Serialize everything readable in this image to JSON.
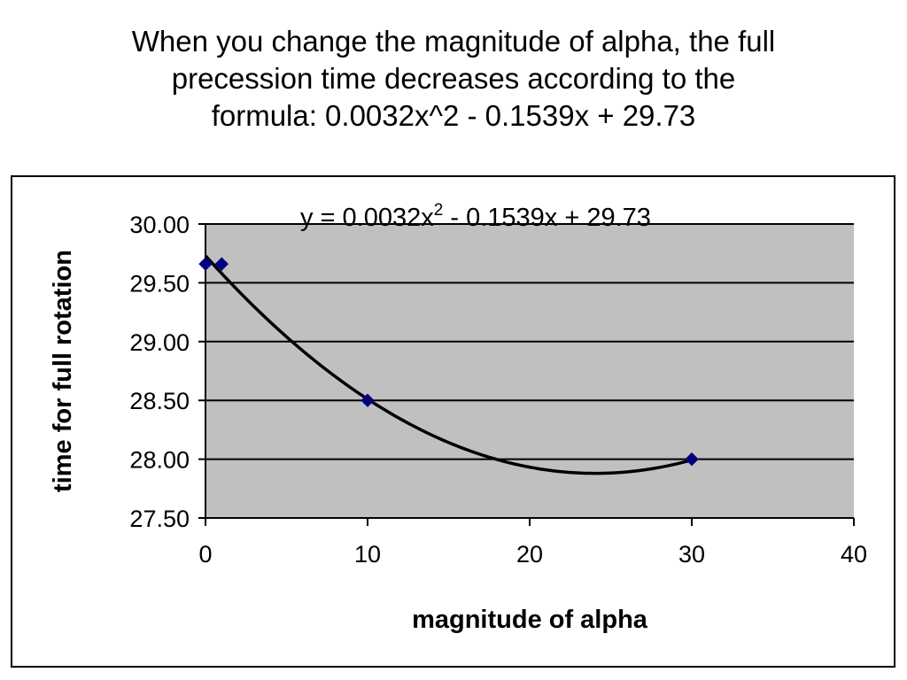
{
  "slide": {
    "title_lines": [
      "When you change the magnitude of alpha, the full",
      "precession time decreases according to the",
      "formula:  0.0032x^2 - 0.1539x + 29.73"
    ]
  },
  "colors": {
    "plot_background": "#C0C0C0",
    "marker": "#000080",
    "trendline": "#000000",
    "gridline": "#000000"
  },
  "chart_data": {
    "type": "scatter",
    "xlabel": "magnitude of alpha",
    "ylabel": "time for full rotation",
    "xlim": [
      0,
      40
    ],
    "ylim": [
      27.5,
      30.0
    ],
    "x_ticks": [
      "0",
      "10",
      "20",
      "30",
      "40"
    ],
    "y_ticks": [
      "27.50",
      "28.00",
      "28.50",
      "29.00",
      "29.50",
      "30.00"
    ],
    "grid": "horizontal",
    "legend": "none",
    "marker": "diamond",
    "series": [
      {
        "x": [
          0,
          1,
          10,
          30
        ],
        "y": [
          29.66,
          29.66,
          28.5,
          28.0
        ]
      }
    ],
    "trendline": {
      "type": "polynomial",
      "order": 2,
      "coefficients": [
        0.0032,
        -0.1539,
        29.73
      ],
      "x_range": [
        0,
        30
      ],
      "equation_prefix": "y = 0.0032x",
      "equation_exponent": "2",
      "equation_suffix": " - 0.1539x + 29.73"
    }
  }
}
